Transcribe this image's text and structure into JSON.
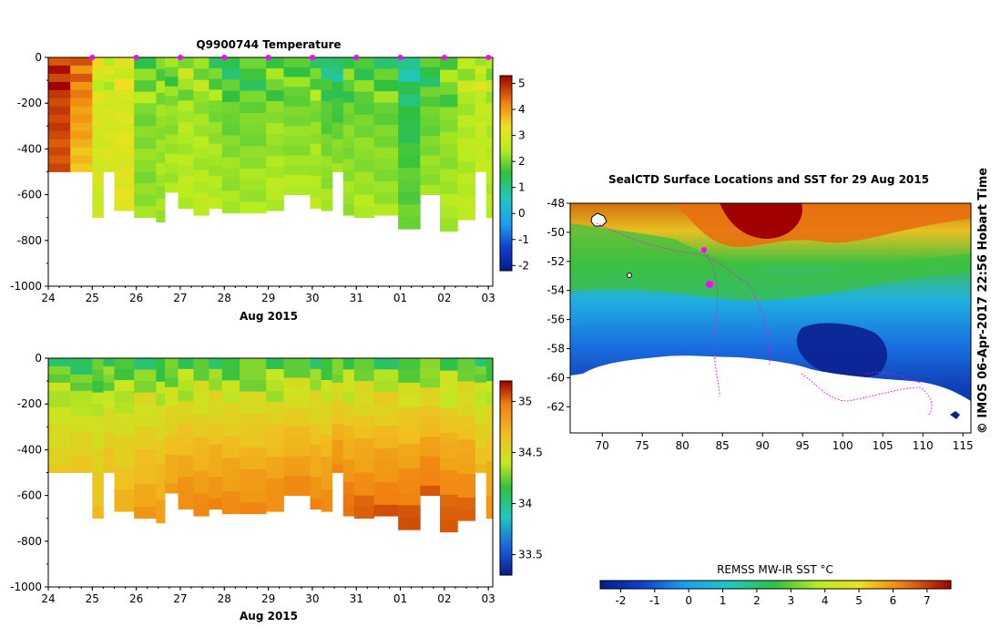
{
  "chart_data": [
    {
      "type": "heatmap",
      "title": "Q9900744  Temperature",
      "xlabel": "Aug 2015",
      "x_tick_labels": [
        "24",
        "25",
        "26",
        "27",
        "28",
        "29",
        "30",
        "31",
        "01",
        "02",
        "03"
      ],
      "xlim_days": [
        24,
        34.1
      ],
      "y_tick_labels": [
        "0",
        "-200",
        "-400",
        "-600",
        "-800",
        "-1000"
      ],
      "y_ticks": [
        0,
        -200,
        -400,
        -600,
        -800,
        -1000
      ],
      "ylim": [
        -1000,
        0
      ],
      "profile_markers_day": [
        25,
        26,
        27,
        28,
        29,
        30,
        31,
        32,
        33,
        34
      ],
      "colorbar": {
        "ticks": [
          5,
          4,
          3,
          2,
          1,
          0,
          -1,
          -2
        ],
        "tick_labels": [
          "5",
          "4",
          "3",
          "2",
          "1",
          "0",
          "-1",
          "-2"
        ],
        "range": [
          -2.2,
          5.3
        ]
      },
      "columns": [
        {
          "x0": 24.0,
          "x1": 24.5,
          "bottom": -500,
          "surf": 5.1,
          "deep": 4.6
        },
        {
          "x0": 24.5,
          "x1": 25.0,
          "bottom": -500,
          "surf": 4.8,
          "deep": 3.6
        },
        {
          "x0": 25.0,
          "x1": 25.25,
          "bottom": -700,
          "surf": 3.0,
          "deep": 2.8
        },
        {
          "x0": 25.25,
          "x1": 25.5,
          "bottom": -500,
          "surf": 2.6,
          "deep": 3.0
        },
        {
          "x0": 25.5,
          "x1": 25.95,
          "bottom": -670,
          "surf": 2.8,
          "deep": 3.1
        },
        {
          "x0": 25.95,
          "x1": 26.45,
          "bottom": -700,
          "surf": 1.9,
          "deep": 2.2
        },
        {
          "x0": 26.45,
          "x1": 26.65,
          "bottom": -720,
          "surf": 2.1,
          "deep": 2.3
        },
        {
          "x0": 26.65,
          "x1": 26.95,
          "bottom": -590,
          "surf": 1.8,
          "deep": 2.4
        },
        {
          "x0": 26.95,
          "x1": 27.3,
          "bottom": -660,
          "surf": 2.2,
          "deep": 2.5
        },
        {
          "x0": 27.3,
          "x1": 27.65,
          "bottom": -690,
          "surf": 2.0,
          "deep": 2.5
        },
        {
          "x0": 27.65,
          "x1": 27.95,
          "bottom": -660,
          "surf": 1.6,
          "deep": 2.5
        },
        {
          "x0": 27.95,
          "x1": 28.35,
          "bottom": -680,
          "surf": 1.3,
          "deep": 2.4
        },
        {
          "x0": 28.35,
          "x1": 28.95,
          "bottom": -680,
          "surf": 1.4,
          "deep": 2.4
        },
        {
          "x0": 28.95,
          "x1": 29.35,
          "bottom": -670,
          "surf": 1.7,
          "deep": 2.5
        },
        {
          "x0": 29.35,
          "x1": 29.95,
          "bottom": -600,
          "surf": 1.5,
          "deep": 2.4
        },
        {
          "x0": 29.95,
          "x1": 30.2,
          "bottom": -660,
          "surf": 1.6,
          "deep": 2.5
        },
        {
          "x0": 30.2,
          "x1": 30.45,
          "bottom": -670,
          "surf": 1.0,
          "deep": 2.4
        },
        {
          "x0": 30.45,
          "x1": 30.7,
          "bottom": -500,
          "surf": 0.6,
          "deep": 2.3
        },
        {
          "x0": 30.7,
          "x1": 30.95,
          "bottom": -690,
          "surf": 1.6,
          "deep": 2.3
        },
        {
          "x0": 30.95,
          "x1": 31.4,
          "bottom": -700,
          "surf": 1.4,
          "deep": 2.4
        },
        {
          "x0": 31.4,
          "x1": 31.95,
          "bottom": -690,
          "surf": 1.5,
          "deep": 2.3
        },
        {
          "x0": 31.95,
          "x1": 32.45,
          "bottom": -750,
          "surf": 0.8,
          "deep": 2.0
        },
        {
          "x0": 32.45,
          "x1": 32.9,
          "bottom": -600,
          "surf": 1.3,
          "deep": 2.3
        },
        {
          "x0": 32.9,
          "x1": 33.3,
          "bottom": -760,
          "surf": 1.8,
          "deep": 2.4
        },
        {
          "x0": 33.3,
          "x1": 33.7,
          "bottom": -710,
          "surf": 2.3,
          "deep": 2.5
        },
        {
          "x0": 33.7,
          "x1": 33.95,
          "bottom": -500,
          "surf": 2.7,
          "deep": 2.6
        },
        {
          "x0": 33.95,
          "x1": 34.1,
          "bottom": -700,
          "surf": 2.4,
          "deep": 2.5
        }
      ]
    },
    {
      "type": "heatmap",
      "title": "",
      "xlabel": "Aug 2015",
      "x_tick_labels": [
        "24",
        "25",
        "26",
        "27",
        "28",
        "29",
        "30",
        "31",
        "01",
        "02",
        "03"
      ],
      "xlim_days": [
        24,
        34.1
      ],
      "y_tick_labels": [
        "0",
        "-200",
        "-400",
        "-600",
        "-800",
        "-1000"
      ],
      "y_ticks": [
        0,
        -200,
        -400,
        -600,
        -800,
        -1000
      ],
      "ylim": [
        -1000,
        0
      ],
      "colorbar": {
        "ticks": [
          35,
          34.5,
          34,
          33.5
        ],
        "tick_labels": [
          "35",
          "34.5",
          "34",
          "33.5"
        ],
        "range": [
          33.3,
          35.2
        ]
      },
      "columns": [
        {
          "x0": 24.0,
          "x1": 24.5,
          "bottom": -500,
          "surf": 34.1,
          "deep": 34.6
        },
        {
          "x0": 24.5,
          "x1": 25.0,
          "bottom": -500,
          "surf": 34.0,
          "deep": 34.65
        },
        {
          "x0": 25.0,
          "x1": 25.25,
          "bottom": -700,
          "surf": 34.05,
          "deep": 34.7
        },
        {
          "x0": 25.25,
          "x1": 25.5,
          "bottom": -500,
          "surf": 34.05,
          "deep": 34.7
        },
        {
          "x0": 25.5,
          "x1": 25.95,
          "bottom": -670,
          "surf": 34.05,
          "deep": 34.75
        },
        {
          "x0": 25.95,
          "x1": 26.45,
          "bottom": -700,
          "surf": 34.05,
          "deep": 34.85
        },
        {
          "x0": 26.45,
          "x1": 26.65,
          "bottom": -720,
          "surf": 34.05,
          "deep": 34.85
        },
        {
          "x0": 26.65,
          "x1": 26.95,
          "bottom": -590,
          "surf": 34.05,
          "deep": 34.85
        },
        {
          "x0": 26.95,
          "x1": 27.3,
          "bottom": -660,
          "surf": 34.05,
          "deep": 34.95
        },
        {
          "x0": 27.3,
          "x1": 27.65,
          "bottom": -690,
          "surf": 34.05,
          "deep": 34.95
        },
        {
          "x0": 27.65,
          "x1": 27.95,
          "bottom": -660,
          "surf": 34.05,
          "deep": 34.95
        },
        {
          "x0": 27.95,
          "x1": 28.35,
          "bottom": -680,
          "surf": 34.05,
          "deep": 34.95
        },
        {
          "x0": 28.35,
          "x1": 28.95,
          "bottom": -680,
          "surf": 34.05,
          "deep": 34.95
        },
        {
          "x0": 28.95,
          "x1": 29.35,
          "bottom": -670,
          "surf": 34.05,
          "deep": 34.95
        },
        {
          "x0": 29.35,
          "x1": 29.95,
          "bottom": -600,
          "surf": 34.05,
          "deep": 34.95
        },
        {
          "x0": 29.95,
          "x1": 30.2,
          "bottom": -660,
          "surf": 34.05,
          "deep": 34.95
        },
        {
          "x0": 30.2,
          "x1": 30.45,
          "bottom": -670,
          "surf": 34.05,
          "deep": 34.95
        },
        {
          "x0": 30.45,
          "x1": 30.7,
          "bottom": -500,
          "surf": 34.05,
          "deep": 34.95
        },
        {
          "x0": 30.7,
          "x1": 30.95,
          "bottom": -690,
          "surf": 34.05,
          "deep": 35.05
        },
        {
          "x0": 30.95,
          "x1": 31.4,
          "bottom": -700,
          "surf": 34.05,
          "deep": 35.05
        },
        {
          "x0": 31.4,
          "x1": 31.95,
          "bottom": -690,
          "surf": 34.05,
          "deep": 35.05
        },
        {
          "x0": 31.95,
          "x1": 32.45,
          "bottom": -750,
          "surf": 34.05,
          "deep": 35.1
        },
        {
          "x0": 32.45,
          "x1": 32.9,
          "bottom": -600,
          "surf": 34.05,
          "deep": 35.05
        },
        {
          "x0": 32.9,
          "x1": 33.3,
          "bottom": -760,
          "surf": 34.05,
          "deep": 35.1
        },
        {
          "x0": 33.3,
          "x1": 33.7,
          "bottom": -710,
          "surf": 34.05,
          "deep": 35.05
        },
        {
          "x0": 33.7,
          "x1": 33.95,
          "bottom": -500,
          "surf": 34.05,
          "deep": 34.7
        },
        {
          "x0": 33.95,
          "x1": 34.1,
          "bottom": -700,
          "surf": 34.05,
          "deep": 34.9
        }
      ]
    },
    {
      "type": "heatmap",
      "title": "SealCTD Surface Locations and SST for 29 Aug 2015",
      "x_tick_labels": [
        "70",
        "75",
        "80",
        "85",
        "90",
        "95",
        "100",
        "105",
        "110",
        "115"
      ],
      "x_ticks": [
        70,
        75,
        80,
        85,
        90,
        95,
        100,
        105,
        110,
        115
      ],
      "xlim": [
        66,
        116
      ],
      "y_tick_labels": [
        "-48",
        "-50",
        "-52",
        "-54",
        "-56",
        "-58",
        "-60",
        "-62"
      ],
      "y_ticks": [
        -48,
        -50,
        -52,
        -54,
        -56,
        -58,
        -60,
        -62
      ],
      "ylim": [
        -63.8,
        -48
      ],
      "colorbar_label": "REMSS MW-IR SST °C",
      "colorbar": {
        "ticks": [
          -2,
          -1,
          0,
          1,
          2,
          3,
          4,
          5,
          6,
          7
        ],
        "tick_labels": [
          "-2",
          "-1",
          "0",
          "1",
          "2",
          "3",
          "4",
          "5",
          "6",
          "7"
        ],
        "range": [
          -2.6,
          7.7
        ]
      },
      "side_label": "© IMOS 06-Apr-2017 22:56 Hobart Time",
      "seal_track_color": "#ff00ff"
    }
  ]
}
